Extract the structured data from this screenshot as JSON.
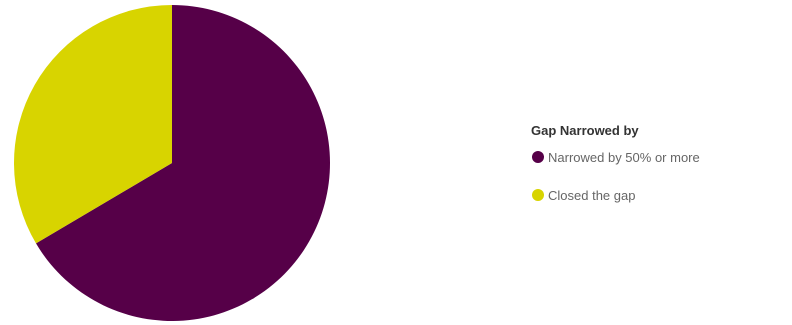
{
  "chart_data": {
    "type": "pie",
    "title": "",
    "legend": {
      "title": "Gap Narrowed by",
      "placement": "right"
    },
    "slices": [
      {
        "name": "Narrowed by 50% or more",
        "value": 66.5,
        "color": "#560048"
      },
      {
        "name": "Closed the gap",
        "value": 33.5,
        "color": "#d8d400"
      }
    ]
  }
}
